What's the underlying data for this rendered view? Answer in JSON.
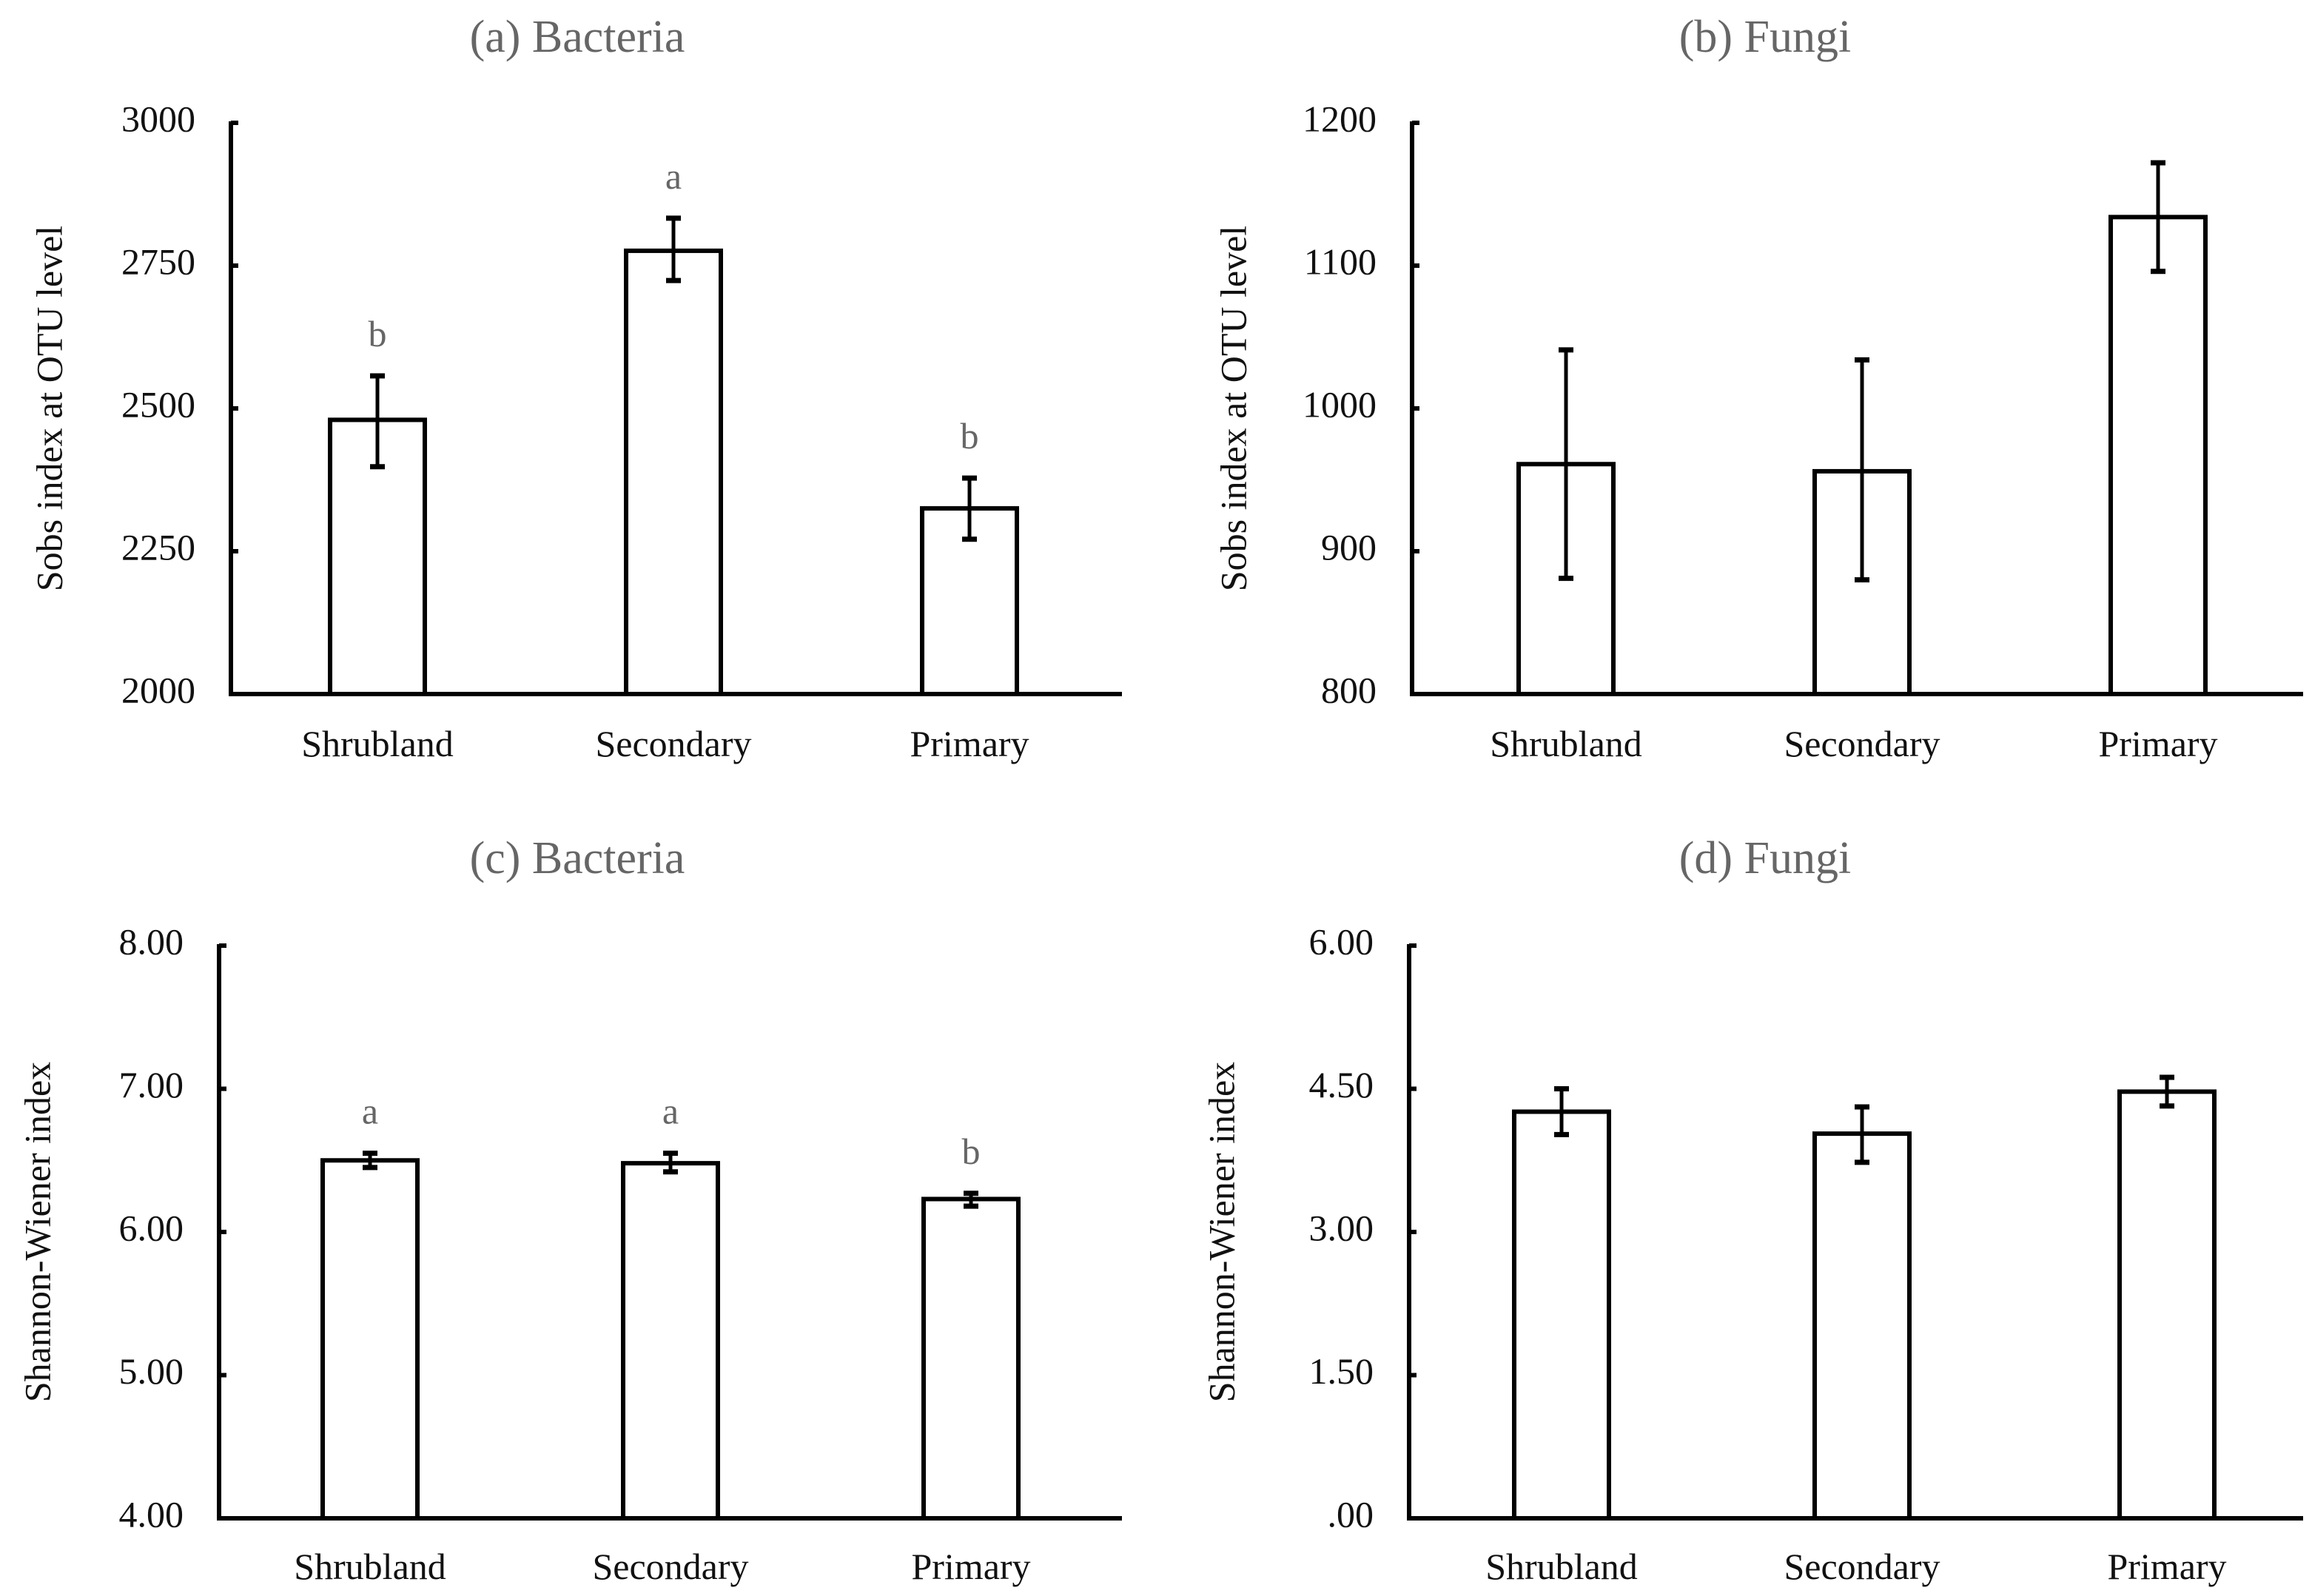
{
  "chart_data": [
    {
      "type": "bar",
      "title": "(a) Bacteria",
      "xlabel": "",
      "ylabel": "Sobs index at OTU level",
      "ylim": [
        2000,
        3000
      ],
      "yticks": [
        "2000",
        "2250",
        "2500",
        "2750",
        "3000"
      ],
      "categories": [
        "Shrubland",
        "Secondary",
        "Primary"
      ],
      "values": [
        2480,
        2776,
        2325
      ],
      "error_low": [
        2398,
        2724,
        2271
      ],
      "error_high": [
        2557,
        2833,
        2378
      ],
      "letters": [
        "b",
        "a",
        "b"
      ]
    },
    {
      "type": "bar",
      "title": "(b) Fungi",
      "xlabel": "",
      "ylabel": "Sobs index at OTU level",
      "ylim": [
        800,
        1200
      ],
      "yticks": [
        "800",
        "900",
        "1000",
        "1100",
        "1200"
      ],
      "categories": [
        "Shrubland",
        "Secondary",
        "Primary"
      ],
      "values": [
        961,
        956,
        1134
      ],
      "error_low": [
        881,
        880,
        1096
      ],
      "error_high": [
        1041,
        1034,
        1172
      ],
      "letters": []
    },
    {
      "type": "bar",
      "title": "(c) Bacteria",
      "xlabel": "",
      "ylabel": "Shannon-Wiener  index",
      "ylim": [
        4,
        8
      ],
      "yticks": [
        "4.00",
        "5.00",
        "6.00",
        "7.00",
        "8.00"
      ],
      "categories": [
        "Shrubland",
        "Secondary",
        "Primary"
      ],
      "values": [
        6.5,
        6.48,
        6.23
      ],
      "error_low": [
        6.45,
        6.42,
        6.18
      ],
      "error_high": [
        6.55,
        6.55,
        6.27
      ],
      "letters": [
        "a",
        "a",
        "b"
      ]
    },
    {
      "type": "bar",
      "title": "(d) Fungi",
      "xlabel": "",
      "ylabel": "Shannon-Wiener  index",
      "ylim": [
        0,
        6
      ],
      "yticks": [
        ".00",
        "1.50",
        "3.00",
        "4.50",
        "6.00"
      ],
      "categories": [
        "Shrubland",
        "Secondary",
        "Primary"
      ],
      "values": [
        4.26,
        4.03,
        4.47
      ],
      "error_low": [
        4.02,
        3.73,
        4.32
      ],
      "error_high": [
        4.5,
        4.31,
        4.62
      ],
      "letters": []
    }
  ]
}
